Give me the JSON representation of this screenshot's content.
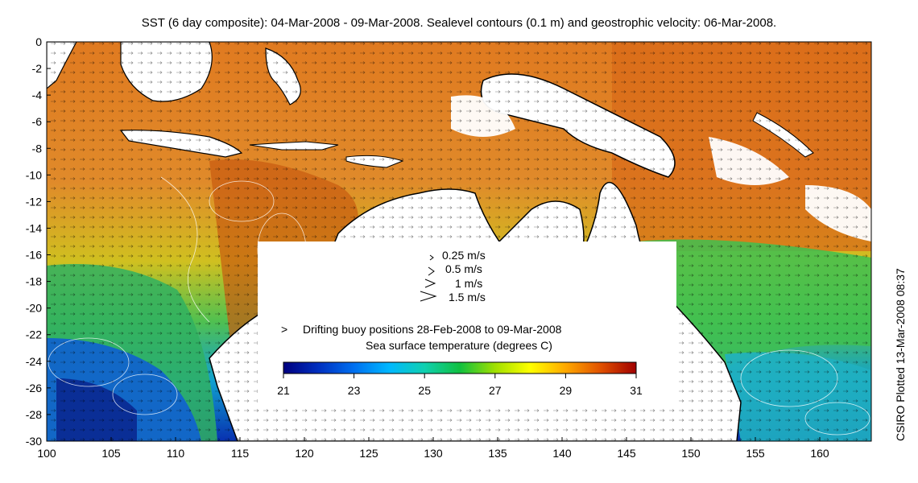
{
  "title": "SST (6 day composite): 04-Mar-2008 - 09-Mar-2008. Sealevel contours (0.1 m) and geostrophic velocity: 06-Mar-2008.",
  "side_note": "CSIRO Plotted 13-Mar-2008 08:37",
  "axes": {
    "x_ticks": [
      "100",
      "105",
      "110",
      "115",
      "120",
      "125",
      "130",
      "135",
      "140",
      "145",
      "150",
      "155",
      "160"
    ],
    "y_ticks": [
      "0",
      "-2",
      "-4",
      "-6",
      "-8",
      "-10",
      "-12",
      "-14",
      "-16",
      "-18",
      "-20",
      "-22",
      "-24",
      "-26",
      "-28",
      "-30"
    ],
    "lon_range": [
      100,
      164
    ],
    "lat_range": [
      -30,
      0
    ]
  },
  "velocity_legend": [
    {
      "label": "0.25 m/s"
    },
    {
      "label": "0.5 m/s"
    },
    {
      "label": "1 m/s"
    },
    {
      "label": "1.5 m/s"
    }
  ],
  "buoy_legend": {
    "marker": ">",
    "label": "Drifting buoy positions 28-Feb-2008 to 09-Mar-2008",
    "color": "#cc00cc"
  },
  "colorbar": {
    "title": "Sea surface temperature (degrees C)",
    "ticks": [
      "21",
      "23",
      "25",
      "27",
      "29",
      "31"
    ],
    "range": [
      21,
      31
    ],
    "colors": [
      "#00007f",
      "#0050d0",
      "#00b4ff",
      "#10d0a0",
      "#10c040",
      "#a0e000",
      "#ffff00",
      "#ffb000",
      "#ff7000",
      "#c83000",
      "#8b0000"
    ]
  }
}
